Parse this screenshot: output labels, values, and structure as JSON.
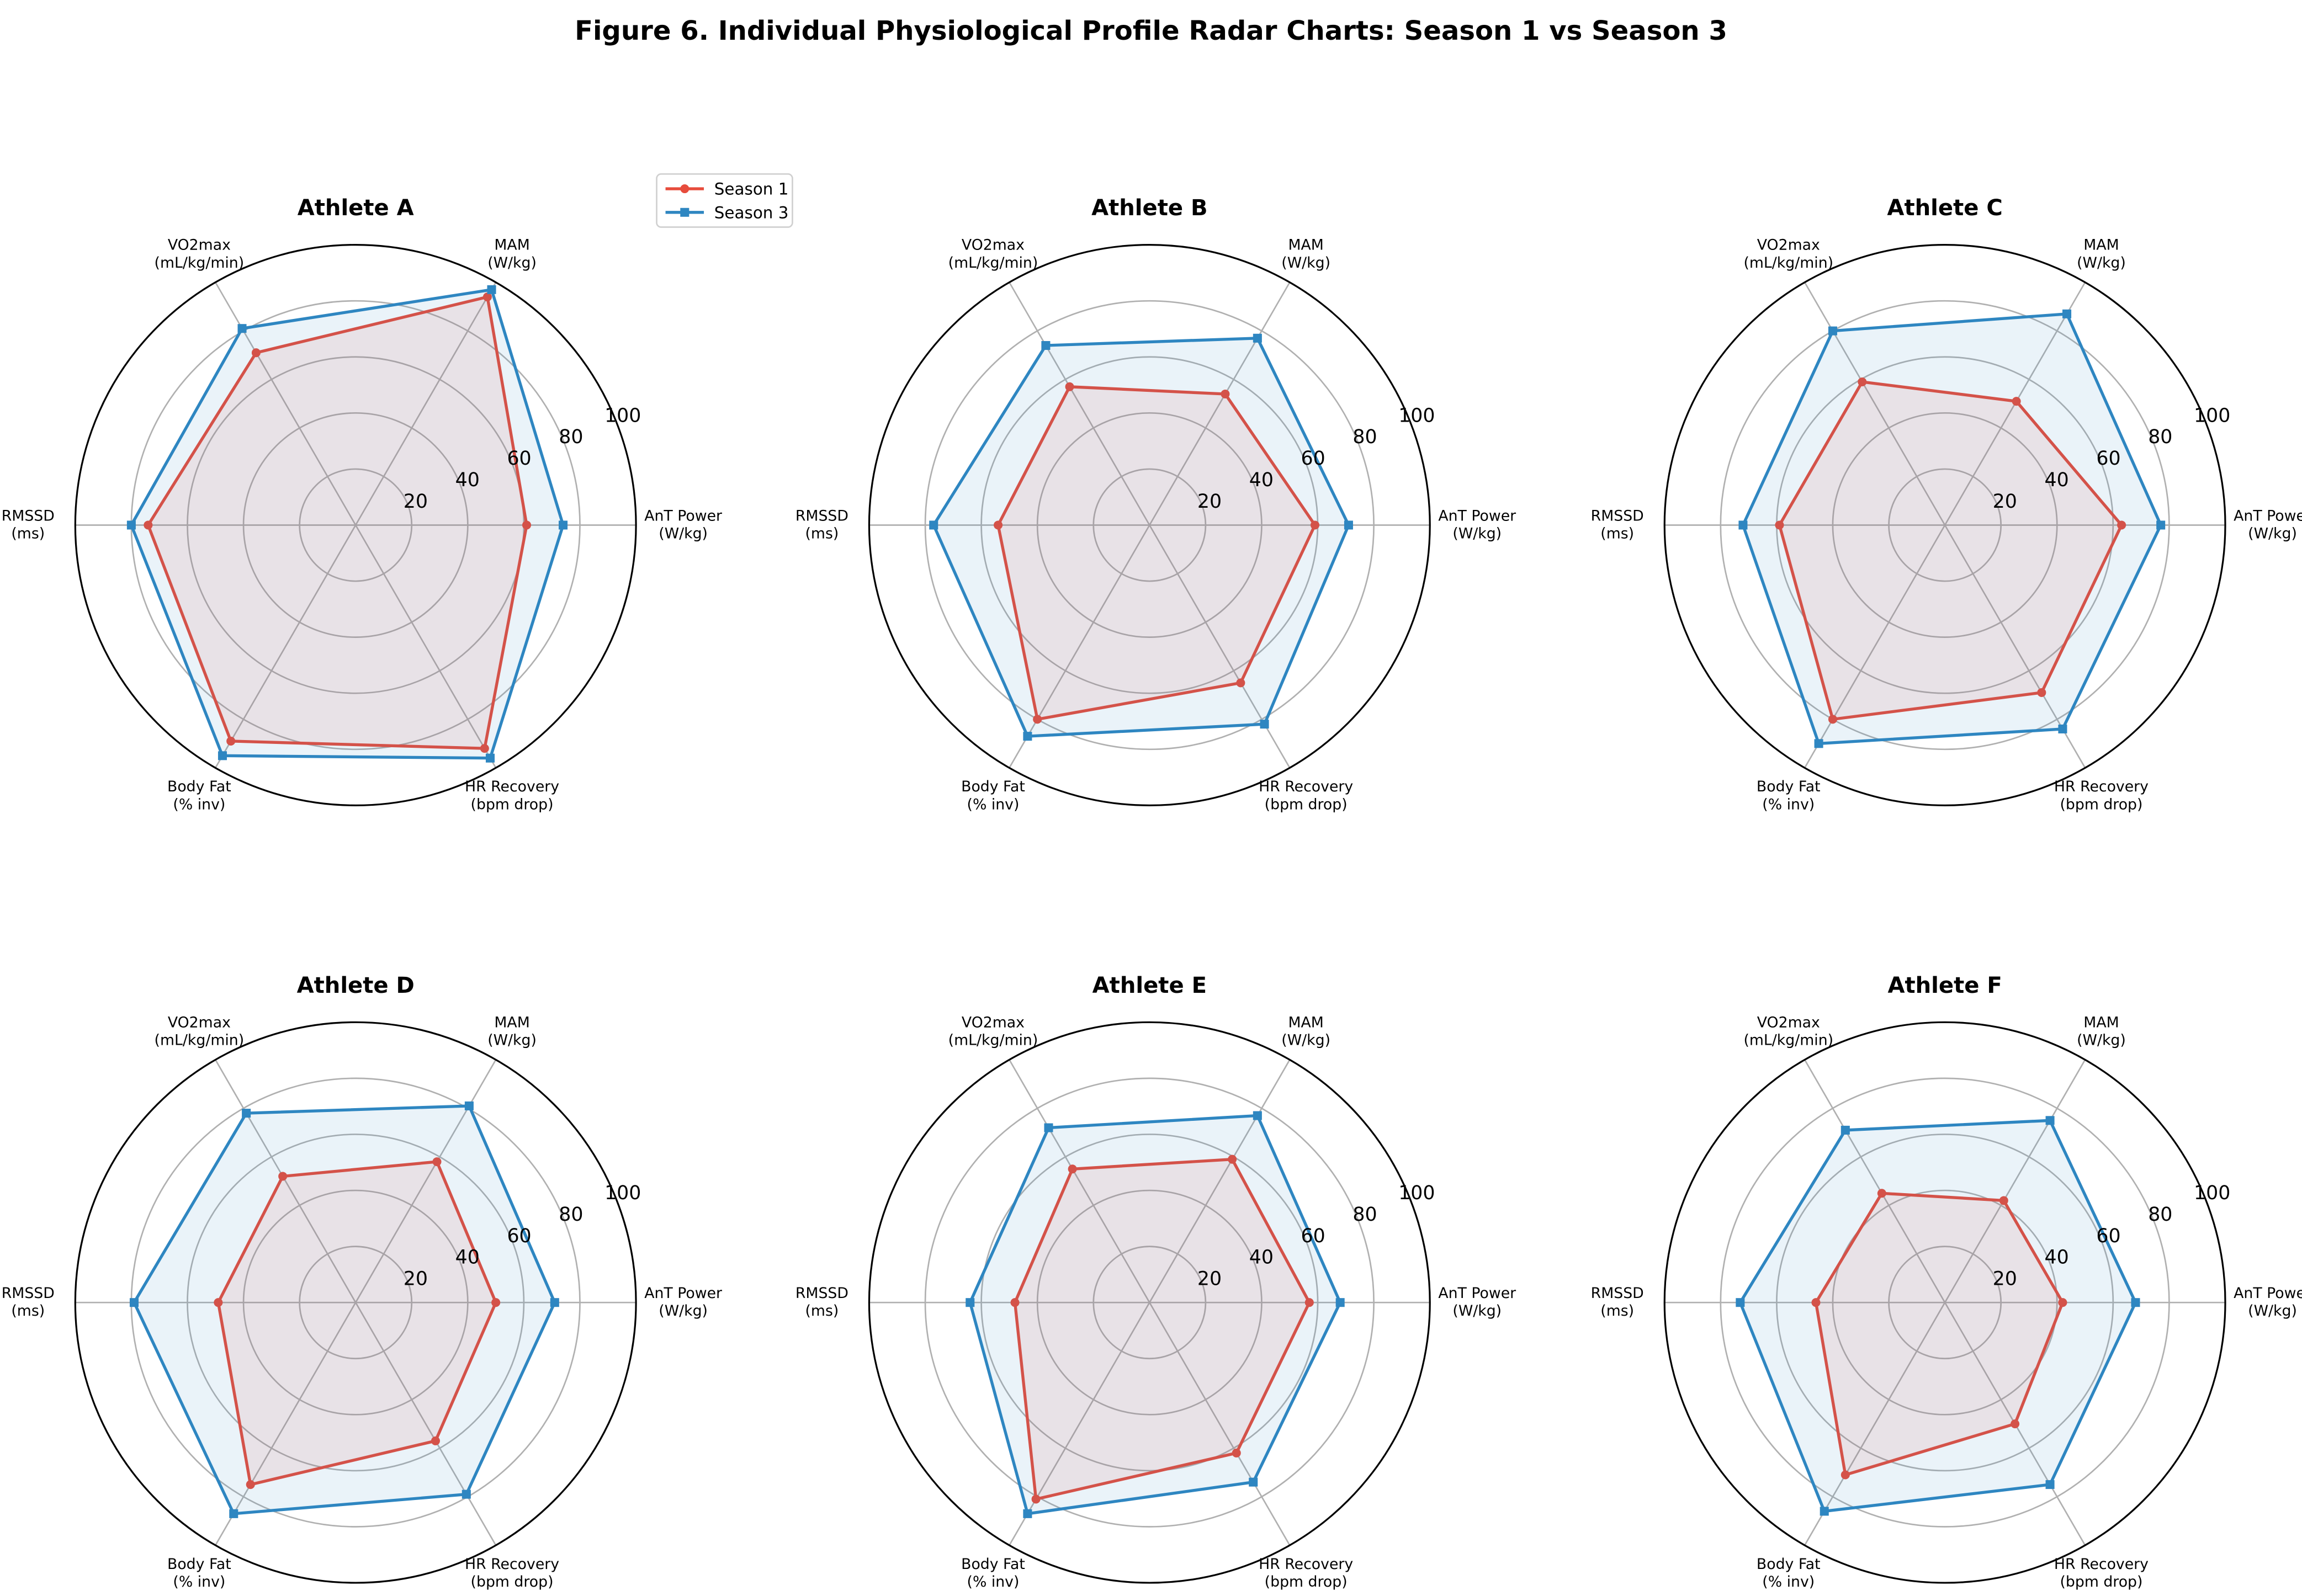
{
  "chart_data": {
    "type": "radar",
    "title": "Figure 6. Individual Physiological Profile Radar Charts: Season 1 vs Season 3",
    "axes": [
      [
        "AnT Power",
        "(W/kg)"
      ],
      [
        "MAM",
        "(W/kg)"
      ],
      [
        "VO2max",
        "(mL/kg/min)"
      ],
      [
        "RMSSD",
        "(ms)"
      ],
      [
        "Body Fat",
        "(% inv)"
      ],
      [
        "HR Recovery",
        "(bpm drop)"
      ]
    ],
    "rlim": [
      0,
      100
    ],
    "rticks": [
      "20",
      "40",
      "60",
      "80",
      "100"
    ],
    "grid": true,
    "legend": {
      "placement": "top-right of first panel",
      "entries": [
        "Season 1",
        "Season 3"
      ]
    },
    "colors": {
      "Season 1": "#e74c3c",
      "Season 3": "#2e86c1"
    },
    "charts": [
      {
        "title": "Athlete A",
        "series": [
          {
            "name": "Season 1",
            "values": [
              61,
              94,
              71,
              74,
              89,
              92
            ]
          },
          {
            "name": "Season 3",
            "values": [
              74,
              97,
              81,
              80,
              95,
              96
            ]
          }
        ]
      },
      {
        "title": "Athlete B",
        "series": [
          {
            "name": "Season 1",
            "values": [
              59,
              54,
              57,
              54,
              80,
              65
            ]
          },
          {
            "name": "Season 3",
            "values": [
              71,
              77,
              74,
              77,
              87,
              82
            ]
          }
        ]
      },
      {
        "title": "Athlete C",
        "series": [
          {
            "name": "Season 1",
            "values": [
              63,
              51,
              59,
              59,
              80,
              69
            ]
          },
          {
            "name": "Season 3",
            "values": [
              77,
              87,
              80,
              72,
              90,
              84
            ]
          }
        ]
      },
      {
        "title": "Athlete D",
        "series": [
          {
            "name": "Season 1",
            "values": [
              50,
              58,
              52,
              49,
              75,
              57
            ]
          },
          {
            "name": "Season 3",
            "values": [
              71,
              81,
              78,
              79,
              87,
              79
            ]
          }
        ]
      },
      {
        "title": "Athlete E",
        "series": [
          {
            "name": "Season 1",
            "values": [
              57,
              59,
              55,
              48,
              81,
              62
            ]
          },
          {
            "name": "Season 3",
            "values": [
              68,
              77,
              72,
              64,
              87,
              74
            ]
          }
        ]
      },
      {
        "title": "Athlete F",
        "series": [
          {
            "name": "Season 1",
            "values": [
              42,
              42,
              45,
              46,
              71,
              50
            ]
          },
          {
            "name": "Season 3",
            "values": [
              68,
              75,
              71,
              73,
              86,
              75
            ]
          }
        ]
      }
    ]
  }
}
